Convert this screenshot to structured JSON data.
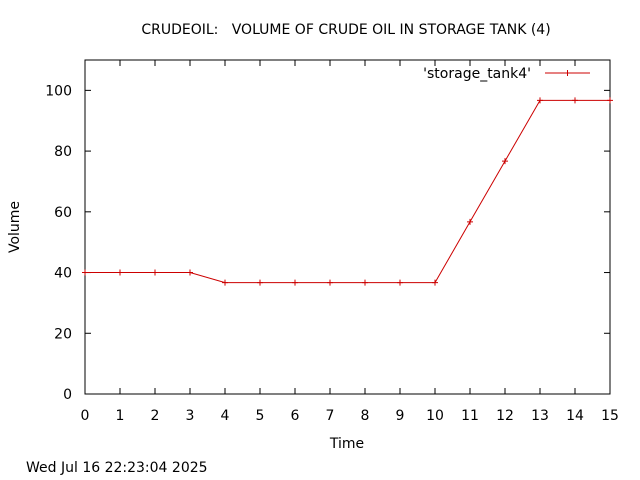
{
  "chart_data": {
    "type": "line",
    "title": "CRUDEOIL:   VOLUME OF CRUDE OIL IN STORAGE TANK (4)",
    "xlabel": "Time",
    "ylabel": "Volume",
    "xlim": [
      0,
      15
    ],
    "ylim": [
      0,
      110
    ],
    "x_ticks": [
      0,
      1,
      2,
      3,
      4,
      5,
      6,
      7,
      8,
      9,
      10,
      11,
      12,
      13,
      14,
      15
    ],
    "y_ticks": [
      0,
      20,
      40,
      60,
      80,
      100
    ],
    "grid": false,
    "legend_position": "top-right",
    "series": [
      {
        "name": "'storage_tank4'",
        "color": "#cc0000",
        "marker": "plus",
        "x": [
          0,
          1,
          2,
          3,
          4,
          5,
          6,
          7,
          8,
          9,
          10,
          11,
          12,
          13,
          14,
          15
        ],
        "y": [
          40,
          40,
          40,
          40,
          36.7,
          36.7,
          36.7,
          36.7,
          36.7,
          36.7,
          36.7,
          56.7,
          76.7,
          96.7,
          96.7,
          96.7
        ]
      }
    ],
    "timestamp": "Wed Jul 16 22:23:04 2025"
  }
}
